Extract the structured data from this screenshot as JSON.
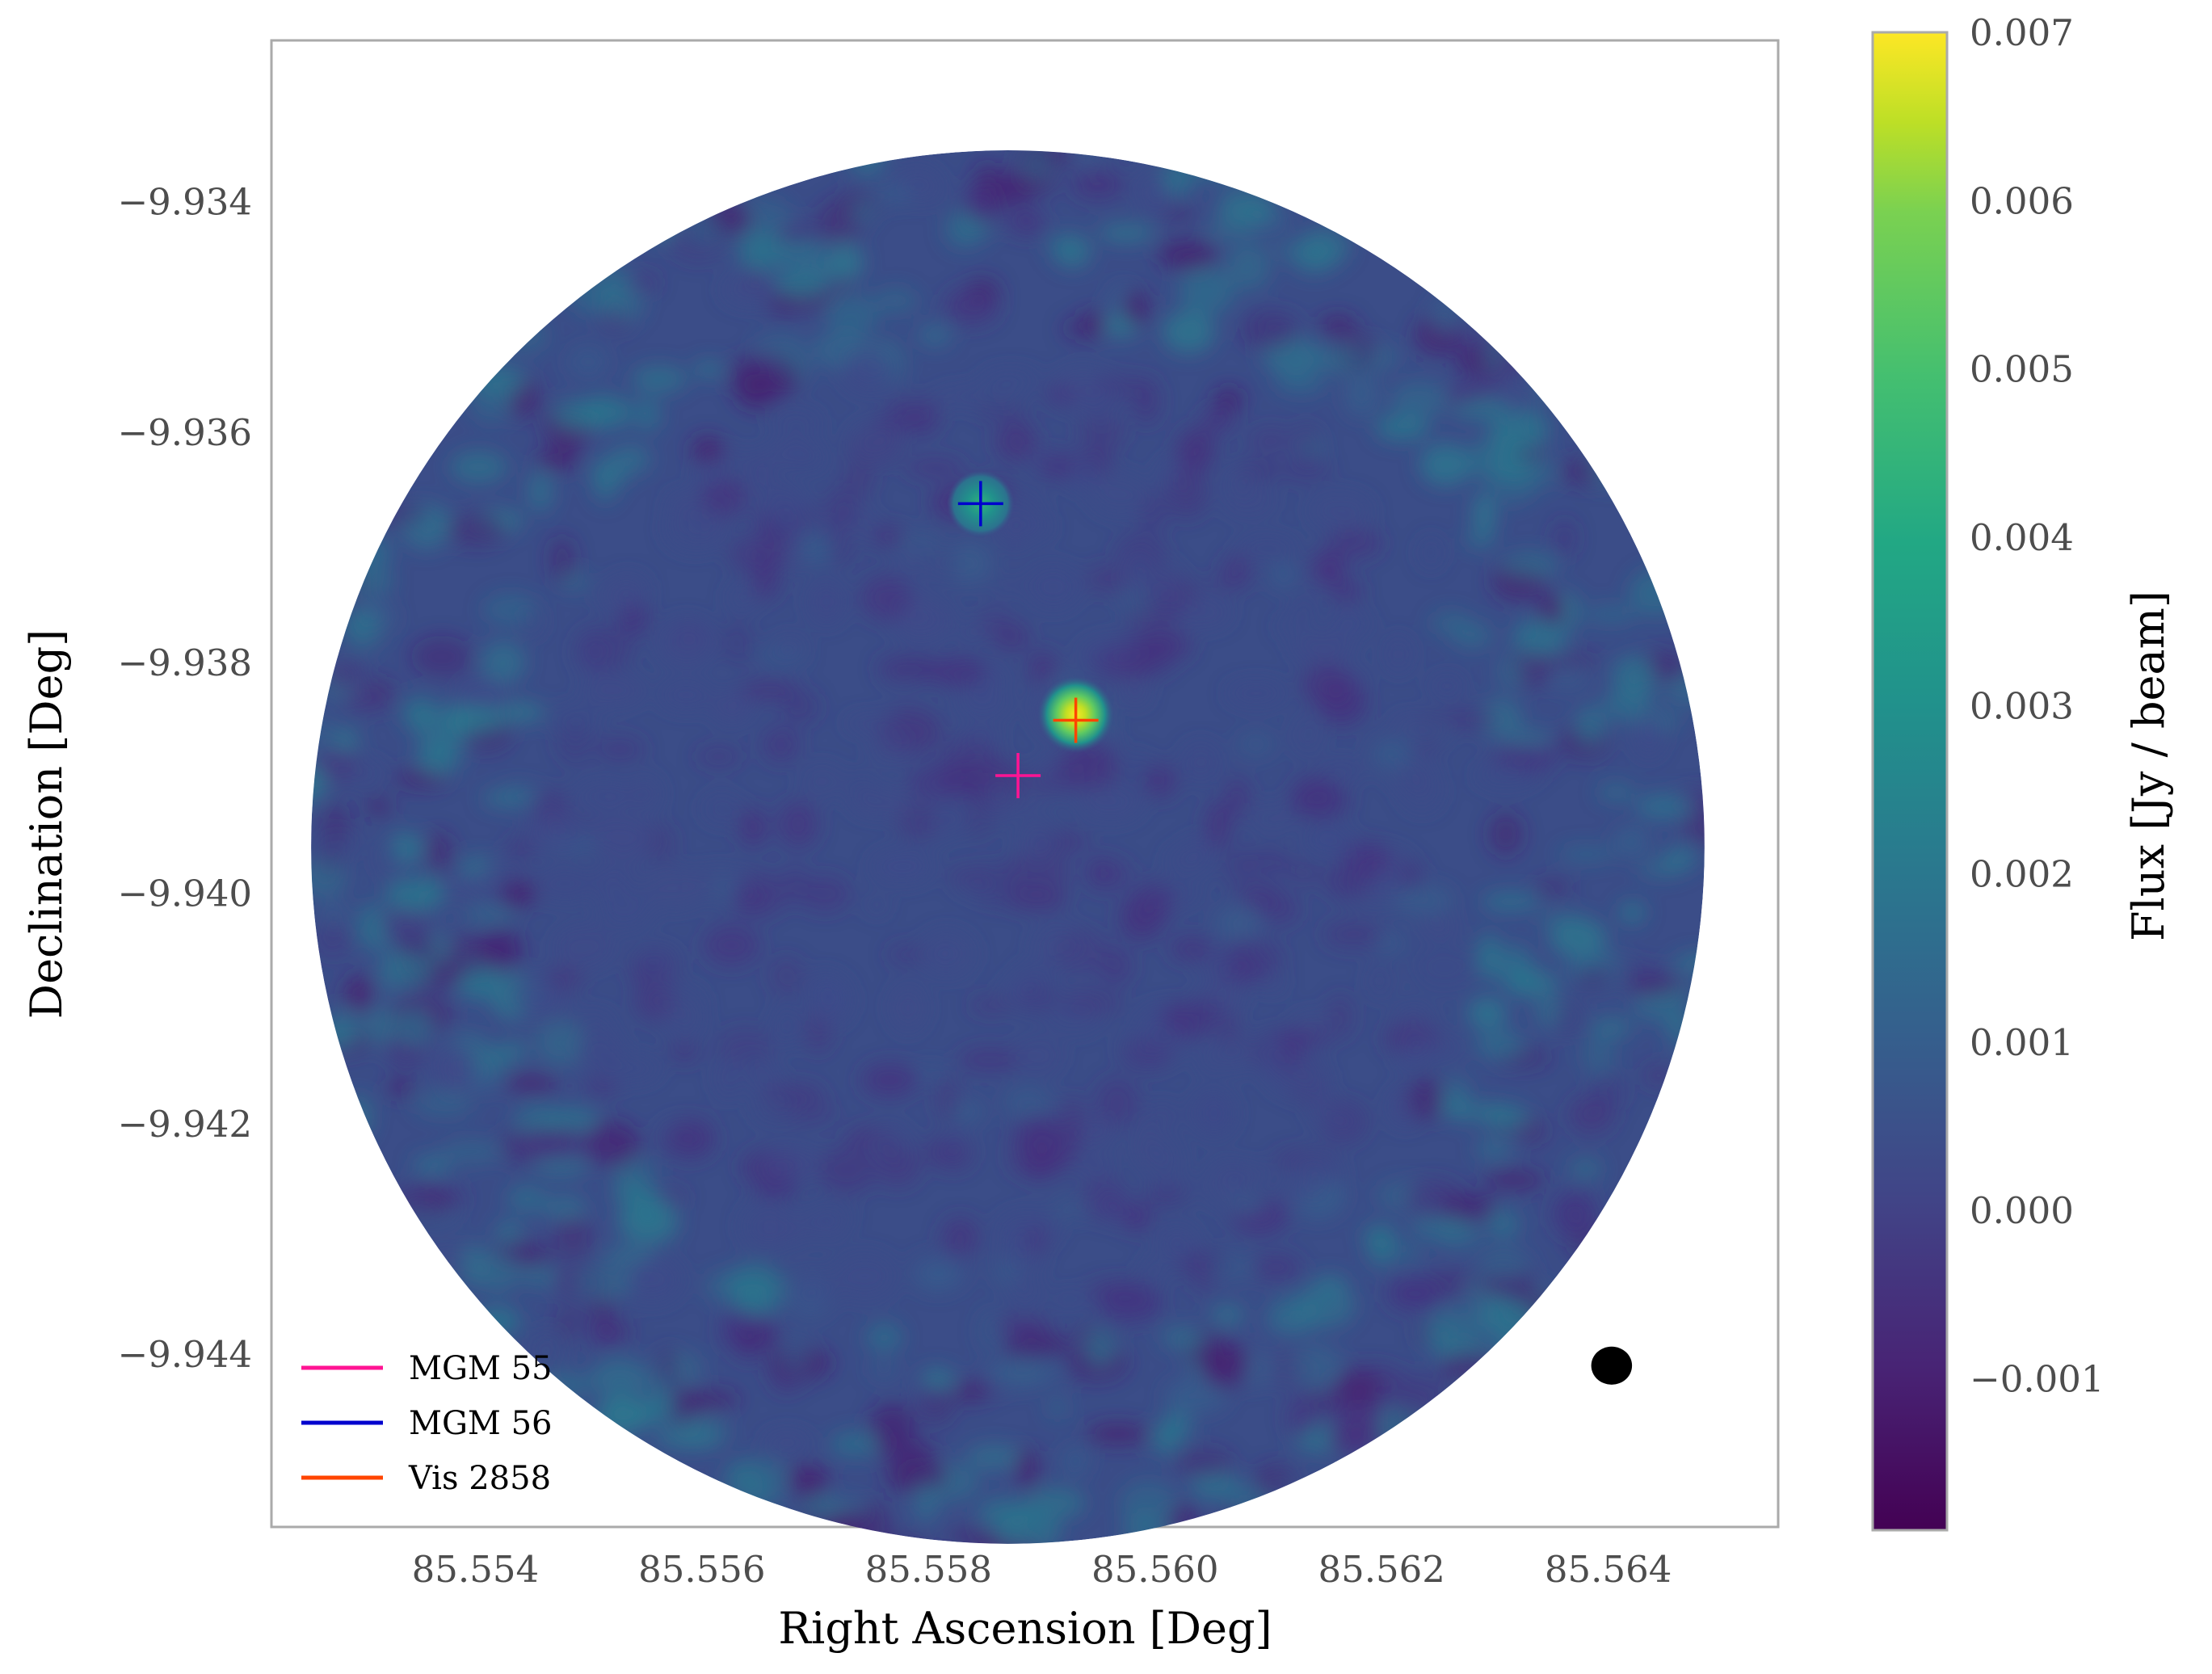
{
  "colors": {
    "frame": "#aaaaaa",
    "background": "#ffffff",
    "mgm55": "#ff1493",
    "mgm56": "#0000cd",
    "vis2858": "#ff4500",
    "beam": "#000000"
  },
  "chart_data": {
    "type": "heatmap",
    "title": "",
    "xlabel": "Right Ascension [Deg]",
    "ylabel": "Declination [Deg]",
    "colorbar_label": "Flux [Jy / beam]",
    "colormap": "viridis",
    "xlim": [
      85.5522,
      85.5655
    ],
    "ylim": [
      -9.9455,
      -9.9326
    ],
    "x_ticks": [
      85.554,
      85.556,
      85.558,
      85.56,
      85.562,
      85.564
    ],
    "x_tick_labels": [
      "85.554",
      "85.556",
      "85.558",
      "85.560",
      "85.562",
      "85.564"
    ],
    "y_ticks": [
      -9.934,
      -9.936,
      -9.938,
      -9.94,
      -9.942,
      -9.944
    ],
    "y_tick_labels": [
      "−9.934",
      "−9.936",
      "−9.938",
      "−9.940",
      "−9.942",
      "−9.944"
    ],
    "colorbar_range": [
      -0.0019,
      0.007
    ],
    "colorbar_ticks": [
      0.007,
      0.006,
      0.005,
      0.004,
      0.003,
      0.002,
      0.001,
      0.0,
      -0.001
    ],
    "colorbar_tick_labels": [
      "0.007",
      "0.006",
      "0.005",
      "0.004",
      "0.003",
      "0.002",
      "0.001",
      "0.000",
      "−0.001"
    ],
    "field": {
      "center_ra": 85.5587,
      "center_dec": -9.9396,
      "radius_deg": 0.00615
    },
    "sources": [
      {
        "ra": 85.5593,
        "dec": -9.93845,
        "peak_flux": 0.0068
      },
      {
        "ra": 85.55846,
        "dec": -9.93662,
        "peak_flux": 0.0025
      }
    ],
    "markers": [
      {
        "name": "MGM 55",
        "ra": 85.55879,
        "dec": -9.93898,
        "color": "#ff1493"
      },
      {
        "name": "MGM 56",
        "ra": 85.55846,
        "dec": -9.93662,
        "color": "#0000cd"
      },
      {
        "name": "Vis 2858",
        "ra": 85.5593,
        "dec": -9.9385,
        "color": "#ff4500"
      }
    ],
    "legend": {
      "placement": "lower-left",
      "entries": [
        "MGM 55",
        "MGM 56",
        "Vis 2858"
      ]
    },
    "beam": {
      "ra": 85.56403,
      "dec": -9.9441,
      "major_deg": 0.00036,
      "minor_deg": 0.00033
    },
    "grid": false
  }
}
